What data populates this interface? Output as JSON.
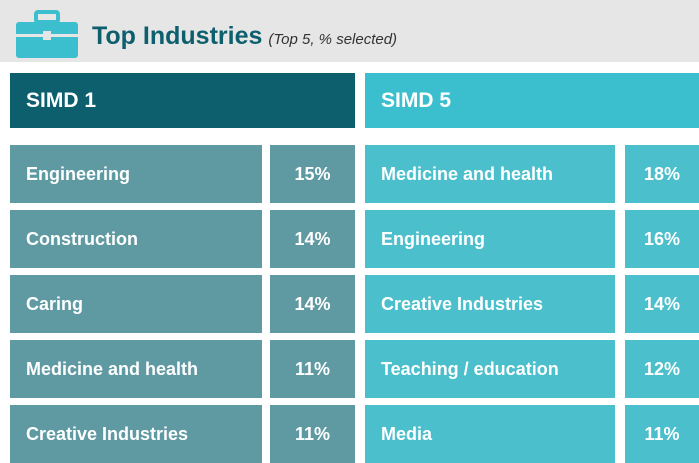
{
  "header": {
    "title": "Top Industries",
    "subtitle": "(Top 5, % selected)"
  },
  "groups": [
    {
      "name": "SIMD 1",
      "rows": [
        {
          "industry": "Engineering",
          "share": "15%"
        },
        {
          "industry": "Construction",
          "share": "14%"
        },
        {
          "industry": "Caring",
          "share": "14%"
        },
        {
          "industry": "Medicine and health",
          "share": "11%"
        },
        {
          "industry": "Creative Industries",
          "share": "11%"
        }
      ]
    },
    {
      "name": "SIMD 5",
      "rows": [
        {
          "industry": "Medicine and health",
          "share": "18%"
        },
        {
          "industry": "Engineering",
          "share": "16%"
        },
        {
          "industry": "Creative Industries",
          "share": "14%"
        },
        {
          "industry": "Teaching / education",
          "share": "12%"
        },
        {
          "industry": "Media",
          "share": "11%"
        }
      ]
    }
  ]
}
